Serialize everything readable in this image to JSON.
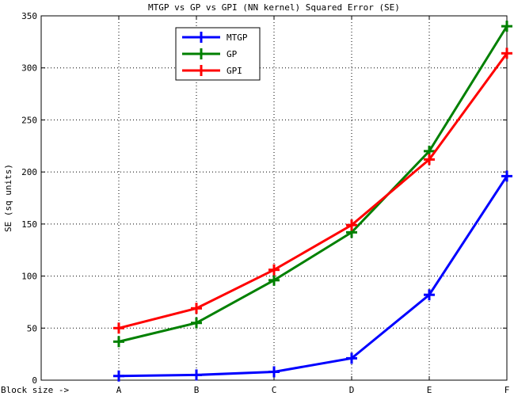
{
  "chart_data": {
    "type": "line",
    "title": "MTGP vs GP vs GPI (NN kernel) Squared Error (SE)",
    "ylabel": "SE (sq units)",
    "xlabel_prefix": "Block size ->",
    "categories": [
      "A",
      "B",
      "C",
      "D",
      "E",
      "F"
    ],
    "ylim": [
      0,
      350
    ],
    "yticks": [
      0,
      50,
      100,
      150,
      200,
      250,
      300,
      350
    ],
    "grid": true,
    "legend_position": "top-center",
    "series": [
      {
        "name": "MTGP",
        "color": "#0000ff",
        "values": [
          4,
          5,
          8,
          21,
          82,
          196
        ]
      },
      {
        "name": "GP",
        "color": "#008000",
        "values": [
          37,
          55,
          96,
          142,
          220,
          340
        ]
      },
      {
        "name": "GPI",
        "color": "#ff0000",
        "values": [
          50,
          69,
          106,
          149,
          212,
          314
        ]
      }
    ]
  }
}
